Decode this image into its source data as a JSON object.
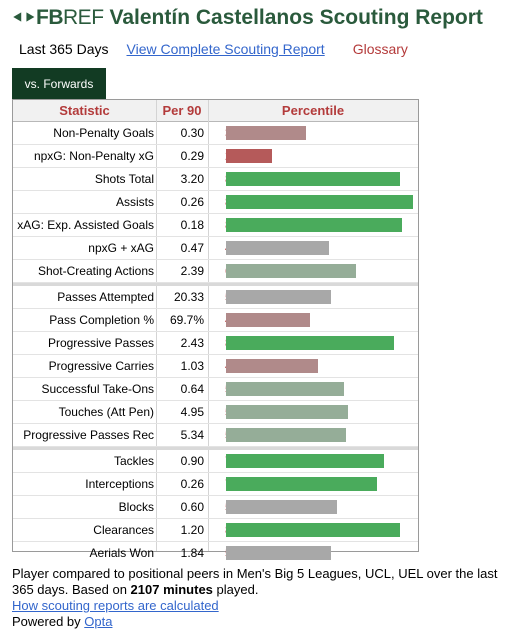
{
  "header": {
    "logo_mark": "⯇⯈",
    "logo_fb": "FB",
    "logo_ref": "REF",
    "title": "Valentín Castellanos Scouting Report"
  },
  "subnav": {
    "period": "Last 365 Days",
    "complete_link": "View Complete Scouting Report",
    "glossary": "Glossary"
  },
  "tab": {
    "label": "vs. Forwards"
  },
  "table": {
    "headers": {
      "statistic": "Statistic",
      "per90": "Per 90",
      "percentile": "Percentile"
    },
    "groups": [
      [
        {
          "stat": "Non-Penalty Goals",
          "per90": "0.30",
          "pct": 38,
          "color": "#b08a8a"
        },
        {
          "stat": "npxG: Non-Penalty xG",
          "per90": "0.29",
          "pct": 22,
          "color": "#b55a5a"
        },
        {
          "stat": "Shots Total",
          "per90": "3.20",
          "pct": 83,
          "color": "#4aab5c"
        },
        {
          "stat": "Assists",
          "per90": "0.26",
          "pct": 89,
          "color": "#4aab5c"
        },
        {
          "stat": "xAG: Exp. Assisted Goals",
          "per90": "0.18",
          "pct": 84,
          "color": "#4aab5c"
        },
        {
          "stat": "npxG + xAG",
          "per90": "0.47",
          "pct": 49,
          "color": "#a8a8a8"
        },
        {
          "stat": "Shot-Creating Actions",
          "per90": "2.39",
          "pct": 62,
          "color": "#95ad98"
        }
      ],
      [
        {
          "stat": "Passes Attempted",
          "per90": "20.33",
          "pct": 50,
          "color": "#a8a8a8"
        },
        {
          "stat": "Pass Completion %",
          "per90": "69.7%",
          "pct": 40,
          "color": "#b08a8a"
        },
        {
          "stat": "Progressive Passes",
          "per90": "2.43",
          "pct": 80,
          "color": "#4aab5c"
        },
        {
          "stat": "Progressive Carries",
          "per90": "1.03",
          "pct": 44,
          "color": "#b08a8a"
        },
        {
          "stat": "Successful Take-Ons",
          "per90": "0.64",
          "pct": 56,
          "color": "#95ad98"
        },
        {
          "stat": "Touches (Att Pen)",
          "per90": "4.95",
          "pct": 58,
          "color": "#95ad98"
        },
        {
          "stat": "Progressive Passes Rec",
          "per90": "5.34",
          "pct": 57,
          "color": "#95ad98"
        }
      ],
      [
        {
          "stat": "Tackles",
          "per90": "0.90",
          "pct": 75,
          "color": "#4aab5c"
        },
        {
          "stat": "Interceptions",
          "per90": "0.26",
          "pct": 72,
          "color": "#4aab5c"
        },
        {
          "stat": "Blocks",
          "per90": "0.60",
          "pct": 53,
          "color": "#a8a8a8"
        },
        {
          "stat": "Clearances",
          "per90": "1.20",
          "pct": 83,
          "color": "#4aab5c"
        },
        {
          "stat": "Aerials Won",
          "per90": "1.84",
          "pct": 50,
          "color": "#a8a8a8"
        }
      ]
    ]
  },
  "footer": {
    "line1_a": "Player compared to positional peers in Men's Big 5 Leagues, UCL, UEL over the last 365 days. Based on ",
    "minutes": "2107 minutes",
    "line1_b": " played.",
    "how_link": "How scouting reports are calculated",
    "powered_by": "Powered by ",
    "opta_link": "Opta"
  }
}
